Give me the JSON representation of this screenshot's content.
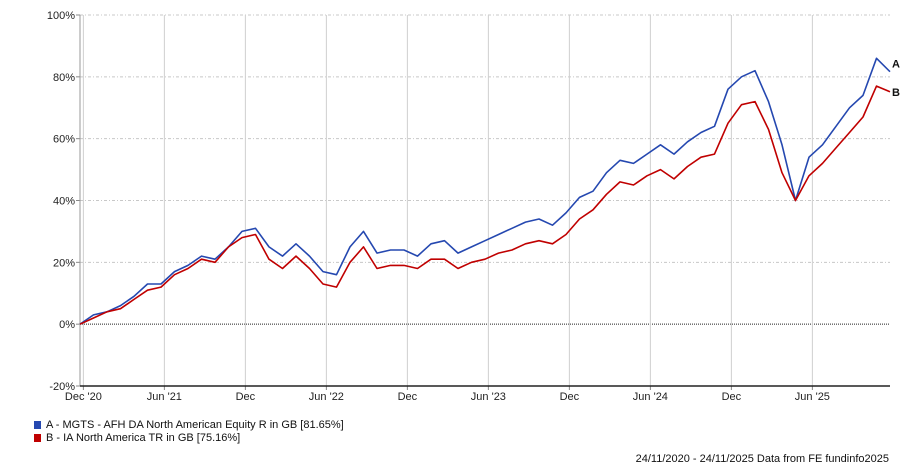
{
  "chart_data": {
    "type": "line",
    "title": "",
    "xlabel": "",
    "ylabel": "",
    "ylim": [
      -20,
      100
    ],
    "yticks": [
      -20,
      0,
      20,
      40,
      60,
      80,
      100
    ],
    "ytick_labels": [
      "-20%",
      "0%",
      "20%",
      "40%",
      "60%",
      "80%",
      "100%"
    ],
    "x_unit": "months since 24/11/2020",
    "xlim": [
      0,
      60
    ],
    "xticks": [
      0.25,
      6.25,
      12.25,
      18.25,
      24.25,
      30.25,
      36.25,
      42.25,
      48.25,
      54.25
    ],
    "xtick_labels": [
      "Dec '20",
      "Jun '21",
      "Dec",
      "Jun '22",
      "Dec",
      "Jun '23",
      "Dec",
      "Jun '24",
      "Dec",
      "Jun '25"
    ],
    "grid": true,
    "legend_position": "bottom-left",
    "series": [
      {
        "name": "A - MGTS - AFH DA North American Equity R in GB [81.65%]",
        "label": "A",
        "color": "#2548b0",
        "values": [
          0,
          3,
          4,
          6,
          9,
          13,
          13,
          17,
          19,
          22,
          21,
          25,
          30,
          31,
          25,
          22,
          26,
          22,
          17,
          16,
          25,
          30,
          23,
          24,
          24,
          22,
          26,
          27,
          23,
          25,
          27,
          29,
          31,
          33,
          34,
          32,
          36,
          41,
          43,
          49,
          53,
          52,
          55,
          58,
          55,
          59,
          62,
          64,
          76,
          80,
          82,
          72,
          58,
          40,
          54,
          58,
          64,
          70,
          74,
          86,
          81.65
        ]
      },
      {
        "name": "B - IA North America TR in GB [75.16%]",
        "label": "B",
        "color": "#c00000",
        "values": [
          0,
          2,
          4,
          5,
          8,
          11,
          12,
          16,
          18,
          21,
          20,
          25,
          28,
          29,
          21,
          18,
          22,
          18,
          13,
          12,
          20,
          25,
          18,
          19,
          19,
          18,
          21,
          21,
          18,
          20,
          21,
          23,
          24,
          26,
          27,
          26,
          29,
          34,
          37,
          42,
          46,
          45,
          48,
          50,
          47,
          51,
          54,
          55,
          65,
          71,
          72,
          63,
          49,
          40,
          48,
          52,
          57,
          62,
          67,
          77,
          75.16
        ]
      }
    ]
  },
  "footer": "24/11/2020 - 24/11/2025 Data from FE fundinfo2025"
}
